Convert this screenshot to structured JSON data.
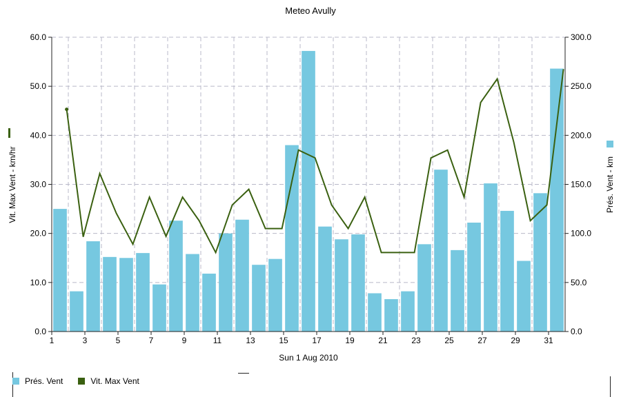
{
  "title": "Meteo  Avully",
  "colors": {
    "bar": "#76c8e0",
    "line": "#3a6010",
    "grid": "#b8b8c8",
    "axis": "#222222"
  },
  "legend": {
    "bars": "Prés. Vent",
    "line": "Vit. Max Vent"
  },
  "chart_data": {
    "type": "bar",
    "title": "Meteo  Avully",
    "xlabel": "Sun 1 Aug 2010",
    "ylabel_left": "Vit. Max Vent - km/hr",
    "ylabel_right": "Prés. Vent - km",
    "x_ticks": [
      "1",
      "3",
      "5",
      "7",
      "9",
      "11",
      "13",
      "15",
      "17",
      "19",
      "21",
      "23",
      "25",
      "27",
      "29",
      "31"
    ],
    "y_left_ticks": [
      "0.0",
      "10.0",
      "20.0",
      "30.0",
      "40.0",
      "50.0",
      "60.0"
    ],
    "y_right_ticks": [
      "0.0",
      "50.0",
      "100.0",
      "150.0",
      "200.0",
      "250.0",
      "300.0"
    ],
    "ylim_left": [
      0,
      60
    ],
    "ylim_right": [
      0,
      300
    ],
    "grid": true,
    "legend_position": "bottom-left",
    "days": [
      1,
      2,
      3,
      4,
      5,
      6,
      7,
      8,
      9,
      10,
      11,
      12,
      13,
      14,
      15,
      16,
      17,
      18,
      19,
      20,
      21,
      22,
      23,
      24,
      25,
      26,
      27,
      28,
      29,
      30,
      31
    ],
    "series": [
      {
        "name": "Prés. Vent",
        "kind": "bar",
        "axis": "right",
        "values": [
          125,
          41,
          92,
          76,
          75,
          80,
          48,
          113,
          79,
          59,
          100,
          114,
          68,
          74,
          190,
          286,
          107,
          94,
          99,
          39,
          33,
          41,
          89,
          165,
          83,
          111,
          151,
          123,
          72,
          141,
          268
        ]
      },
      {
        "name": "Vit. Max Vent",
        "kind": "line",
        "axis": "left",
        "values": [
          45.3,
          19.3,
          32.2,
          24.1,
          17.8,
          27.4,
          19.4,
          27.4,
          22.6,
          16.1,
          25.8,
          29.0,
          21.0,
          21.0,
          37.0,
          35.4,
          25.8,
          21.0,
          27.4,
          16.1,
          16.1,
          16.1,
          35.4,
          37.0,
          27.4,
          46.7,
          51.5,
          38.6,
          22.6,
          25.8,
          53.5
        ]
      }
    ]
  }
}
